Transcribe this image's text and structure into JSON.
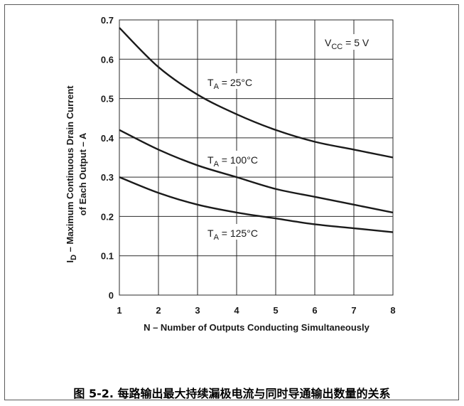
{
  "chart_data": {
    "type": "line",
    "ylabel_lines": [
      "I_D – Maximum Continuous Drain Current",
      "of Each Output – A"
    ],
    "xlabel": "N – Number of Outputs Conducting Simultaneously",
    "xlim": [
      1,
      8
    ],
    "ylim": [
      0,
      0.7
    ],
    "x_ticks": [
      1,
      2,
      3,
      4,
      5,
      6,
      7,
      8
    ],
    "y_ticks": [
      0,
      0.1,
      0.2,
      0.3,
      0.4,
      0.5,
      0.6,
      0.7
    ],
    "y_tick_labels": [
      "0",
      "0.1",
      "0.2",
      "0.3",
      "0.4",
      "0.5",
      "0.6",
      "0.7"
    ],
    "grid": true,
    "condition": {
      "prefix": "V",
      "sub": "CC",
      "rest": " = 5 V"
    },
    "x": [
      1,
      2,
      3,
      4,
      5,
      6,
      7,
      8
    ],
    "series": [
      {
        "label": {
          "prefix": "T",
          "sub": "A",
          "rest": " = 25°C"
        },
        "values": [
          0.68,
          0.58,
          0.51,
          0.46,
          0.42,
          0.39,
          0.37,
          0.35
        ]
      },
      {
        "label": {
          "prefix": "T",
          "sub": "A",
          "rest": " = 100°C"
        },
        "values": [
          0.42,
          0.37,
          0.33,
          0.3,
          0.27,
          0.25,
          0.23,
          0.21
        ]
      },
      {
        "label": {
          "prefix": "T",
          "sub": "A",
          "rest": " = 125°C"
        },
        "values": [
          0.3,
          0.26,
          0.23,
          0.21,
          0.195,
          0.18,
          0.17,
          0.16
        ]
      }
    ]
  },
  "caption": "图 5-2. 每路输出最大持续漏极电流与同时导通输出数量的关系"
}
